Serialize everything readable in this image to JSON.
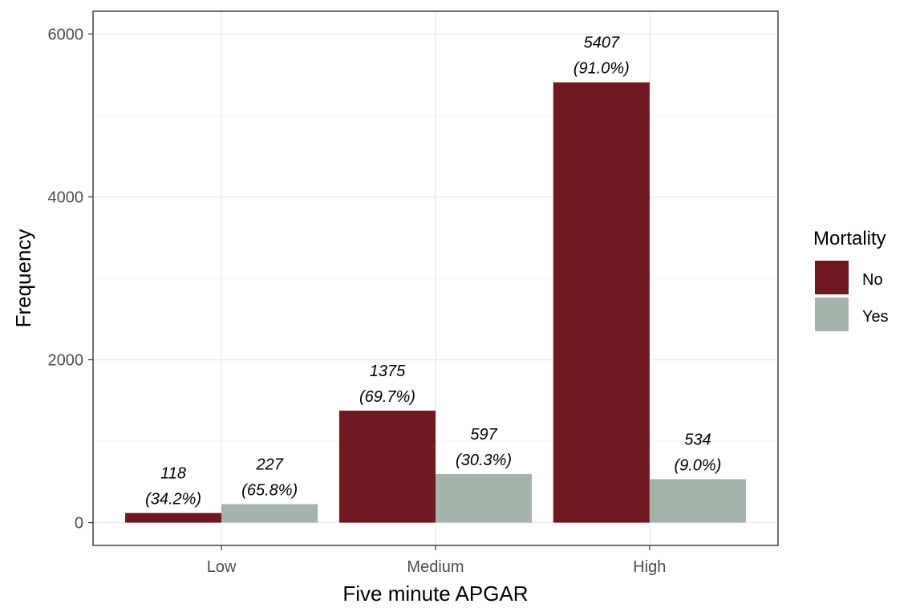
{
  "chart_data": {
    "type": "bar",
    "xlabel": "Five minute APGAR",
    "ylabel": "Frequency",
    "categories": [
      "Low",
      "Medium",
      "High"
    ],
    "ylim": [
      -280,
      6280
    ],
    "y_ticks": [
      0,
      2000,
      4000,
      6000
    ],
    "y_tick_labels": [
      "0",
      "2000",
      "4000",
      "6000"
    ],
    "grid": true,
    "legend": {
      "title": "Mortality",
      "position": "right"
    },
    "series": [
      {
        "name": "No",
        "color": "#6f1920",
        "values": [
          118,
          1375,
          5407
        ],
        "labels": [
          "(34.2%)",
          "(69.7%)",
          "(91.0%)"
        ]
      },
      {
        "name": "Yes",
        "color": "#a5b4ab",
        "values": [
          227,
          597,
          534
        ],
        "labels": [
          "(65.8%)",
          "(30.3%)",
          "(9.0%)"
        ]
      }
    ]
  }
}
